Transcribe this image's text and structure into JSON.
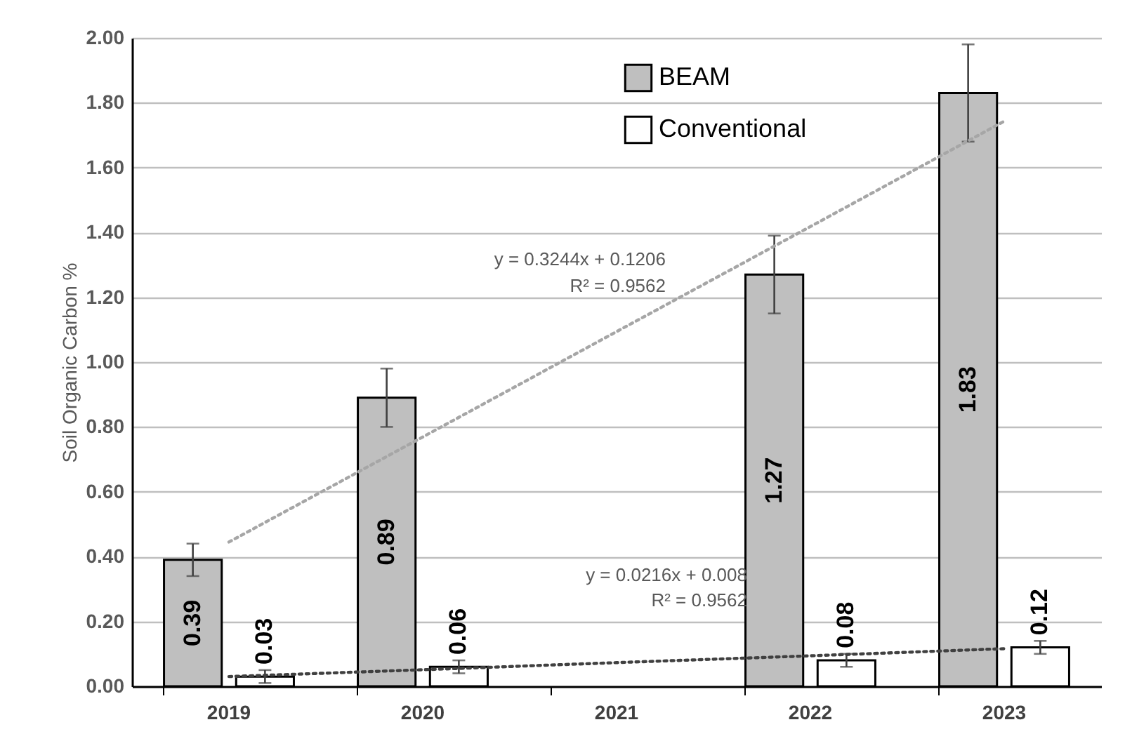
{
  "chart_data": {
    "type": "bar",
    "ylabel": "Soil Organic Carbon %",
    "categories": [
      "2019",
      "2020",
      "2021",
      "2022",
      "2023"
    ],
    "series": [
      {
        "name": "BEAM",
        "color": "#bfbfbf",
        "values": [
          0.39,
          0.89,
          null,
          1.27,
          1.83
        ],
        "errors": [
          0.05,
          0.09,
          null,
          0.12,
          0.15
        ],
        "value_labels": [
          "0.39",
          "0.89",
          null,
          "1.27",
          "1.83"
        ]
      },
      {
        "name": "Conventional",
        "color": "#ffffff",
        "values": [
          0.03,
          0.06,
          null,
          0.08,
          0.12
        ],
        "errors": [
          0.02,
          0.02,
          null,
          0.02,
          0.02
        ],
        "value_labels": [
          "0.03",
          "0.06",
          null,
          "0.08",
          "0.12"
        ]
      },
      {
        "type": "line",
        "color": "#a6a6a6",
        "values": [
          0.445,
          0.769,
          1.094,
          1.418,
          1.743
        ],
        "line_style": "dotted"
      },
      {
        "type": "line",
        "color": "#404040",
        "values": [
          0.03,
          0.051,
          0.073,
          0.094,
          0.116
        ],
        "line_style": "dotted"
      }
    ],
    "ylim": [
      0,
      2
    ],
    "yticks": [
      {
        "value": 0,
        "label": "0.00"
      },
      {
        "value": 0.2,
        "label": "0.20"
      },
      {
        "value": 0.4,
        "label": "0.40"
      },
      {
        "value": 0.6,
        "label": "0.60"
      },
      {
        "value": 0.8,
        "label": "0.80"
      },
      {
        "value": 1,
        "label": "1.00"
      },
      {
        "value": 1.2,
        "label": "1.20"
      },
      {
        "value": 1.4,
        "label": "1.40"
      },
      {
        "value": 1.6,
        "label": "1.60"
      },
      {
        "value": 1.8,
        "label": "1.80"
      },
      {
        "value": 2,
        "label": "2.00"
      }
    ],
    "annotations": [
      "y = 0.3244x + 0.1206",
      "R² = 0.9562",
      "y = 0.0216x + 0.008",
      "R² = 0.9562"
    ],
    "grid": "y",
    "legend": "top"
  }
}
